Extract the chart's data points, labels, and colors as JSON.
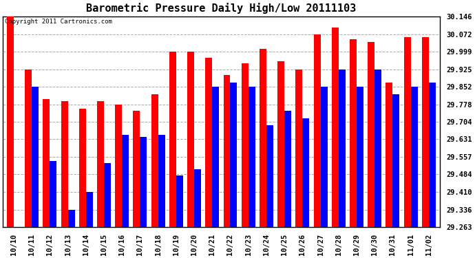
{
  "title": "Barometric Pressure Daily High/Low 20111103",
  "copyright": "Copyright 2011 Cartronics.com",
  "categories": [
    "10/10",
    "10/11",
    "10/12",
    "10/13",
    "10/14",
    "10/15",
    "10/16",
    "10/17",
    "10/18",
    "10/19",
    "10/20",
    "10/21",
    "10/22",
    "10/23",
    "10/24",
    "10/25",
    "10/26",
    "10/27",
    "10/28",
    "10/29",
    "10/30",
    "10/31",
    "11/01",
    "11/02"
  ],
  "highs": [
    30.146,
    29.925,
    29.8,
    29.79,
    29.76,
    29.79,
    29.778,
    29.752,
    29.82,
    30.0,
    29.999,
    29.972,
    29.9,
    29.95,
    30.01,
    29.96,
    29.925,
    30.072,
    30.1,
    30.05,
    30.04,
    29.87,
    30.06,
    30.06
  ],
  "lows": [
    29.263,
    29.852,
    29.54,
    29.336,
    29.41,
    29.53,
    29.65,
    29.64,
    29.65,
    29.48,
    29.504,
    29.852,
    29.87,
    29.852,
    29.69,
    29.75,
    29.72,
    29.852,
    29.925,
    29.852,
    29.925,
    29.82,
    29.852,
    29.87
  ],
  "ymin": 29.263,
  "ymax": 30.146,
  "yticks": [
    29.263,
    29.336,
    29.41,
    29.484,
    29.557,
    29.631,
    29.704,
    29.778,
    29.852,
    29.925,
    29.999,
    30.072,
    30.146
  ],
  "high_color": "#ff0000",
  "low_color": "#0000ff",
  "background_color": "#ffffff",
  "plot_bg_color": "#ffffff",
  "grid_color": "#aaaaaa",
  "title_fontsize": 11,
  "tick_fontsize": 7.5
}
